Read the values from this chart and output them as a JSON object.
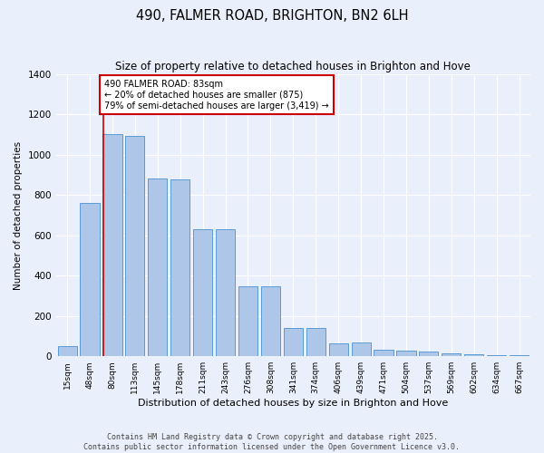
{
  "title": "490, FALMER ROAD, BRIGHTON, BN2 6LH",
  "subtitle": "Size of property relative to detached houses in Brighton and Hove",
  "xlabel": "Distribution of detached houses by size in Brighton and Hove",
  "ylabel": "Number of detached properties",
  "footer_line1": "Contains HM Land Registry data © Crown copyright and database right 2025.",
  "footer_line2": "Contains public sector information licensed under the Open Government Licence v3.0.",
  "categories": [
    "15sqm",
    "48sqm",
    "80sqm",
    "113sqm",
    "145sqm",
    "178sqm",
    "211sqm",
    "243sqm",
    "276sqm",
    "308sqm",
    "341sqm",
    "374sqm",
    "406sqm",
    "439sqm",
    "471sqm",
    "504sqm",
    "537sqm",
    "569sqm",
    "602sqm",
    "634sqm",
    "667sqm"
  ],
  "values": [
    50,
    760,
    1100,
    1095,
    880,
    875,
    630,
    630,
    345,
    345,
    140,
    140,
    65,
    68,
    32,
    30,
    22,
    16,
    10,
    7,
    5
  ],
  "bar_color": "#aec6e8",
  "bar_edge_color": "#5b9bd5",
  "background_color": "#eaf0fb",
  "grid_color": "#ffffff",
  "annotation_text": "490 FALMER ROAD: 83sqm\n← 20% of detached houses are smaller (875)\n79% of semi-detached houses are larger (3,419) →",
  "annotation_box_color": "#ffffff",
  "annotation_box_edge_color": "#cc0000",
  "red_line_x": 1.6,
  "ylim": [
    0,
    1400
  ],
  "yticks": [
    0,
    200,
    400,
    600,
    800,
    1000,
    1200,
    1400
  ]
}
